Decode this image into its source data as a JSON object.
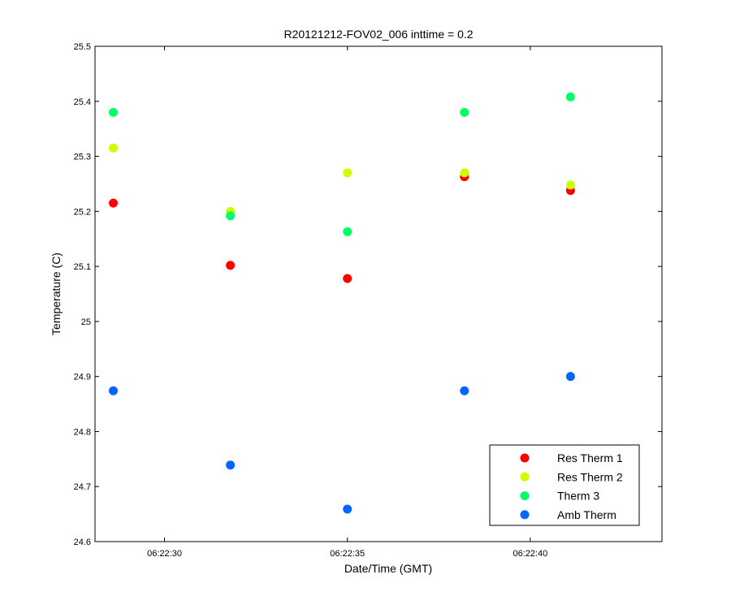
{
  "chart_data": {
    "type": "scatter",
    "title": "R20121212-FOV02_006 inttime = 0.2",
    "xlabel": "Date/Time (GMT)",
    "ylabel": "Temperature (C)",
    "x_ticks": [
      "06:22:30",
      "06:22:35",
      "06:22:40"
    ],
    "x_tick_values": [
      30,
      35,
      40
    ],
    "xlim": [
      28.1,
      43.6
    ],
    "ylim": [
      24.6,
      25.5
    ],
    "y_ticks": [
      "24.6",
      "24.7",
      "24.8",
      "24.9",
      "25",
      "25.1",
      "25.2",
      "25.3",
      "25.4",
      "25.5"
    ],
    "y_tick_values": [
      24.6,
      24.7,
      24.8,
      24.9,
      25.0,
      25.1,
      25.2,
      25.3,
      25.4,
      25.5
    ],
    "x": [
      28.6,
      31.8,
      35.0,
      38.2,
      41.1
    ],
    "series": [
      {
        "name": "Res Therm 1",
        "color": "#ff0000",
        "values": [
          25.215,
          25.102,
          25.078,
          25.263,
          25.238
        ]
      },
      {
        "name": "Res Therm 2",
        "color": "#ccff00",
        "values": [
          25.315,
          25.2,
          25.27,
          25.27,
          25.248
        ]
      },
      {
        "name": "Therm 3",
        "color": "#00ff66",
        "values": [
          25.38,
          25.192,
          25.163,
          25.38,
          25.408
        ]
      },
      {
        "name": "Amb Therm",
        "color": "#0066ff",
        "values": [
          24.874,
          24.739,
          24.659,
          24.874,
          24.9
        ]
      }
    ],
    "legend_position": "bottom-right",
    "grid": false
  }
}
